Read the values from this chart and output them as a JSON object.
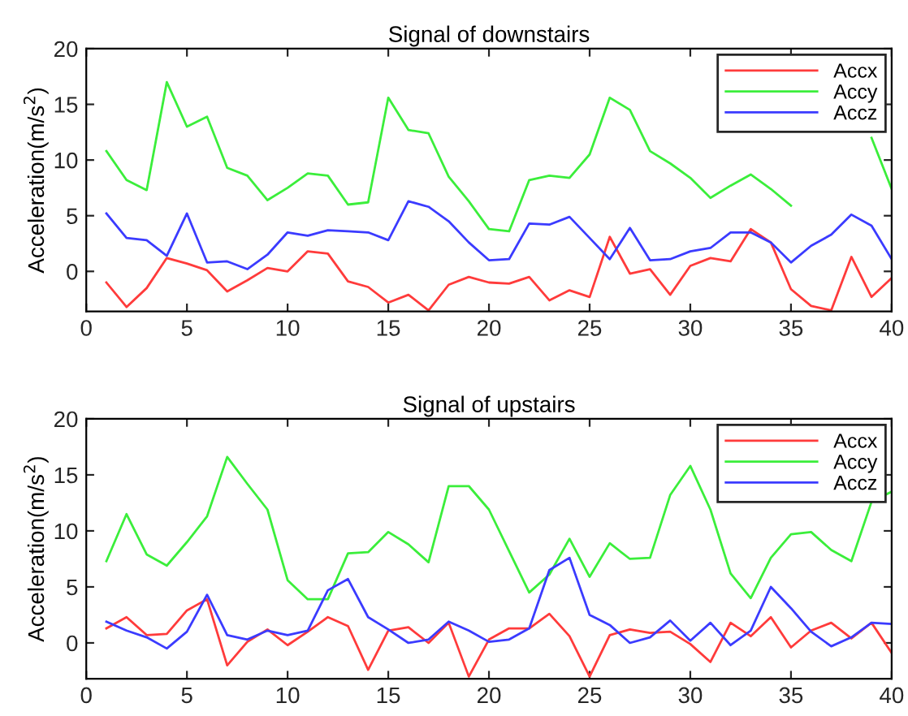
{
  "chart_data": [
    {
      "type": "line",
      "title": "Signal of downstairs",
      "ylabel": "Acceleration(m/s$^{2}$)",
      "x": [
        1,
        2,
        3,
        4,
        5,
        6,
        7,
        8,
        9,
        10,
        11,
        12,
        13,
        14,
        15,
        16,
        17,
        18,
        19,
        20,
        21,
        22,
        23,
        24,
        25,
        26,
        27,
        28,
        29,
        30,
        31,
        32,
        33,
        34,
        35,
        36,
        37,
        38,
        39,
        40
      ],
      "series": [
        {
          "name": "Accx",
          "color": "#ff3b3b",
          "values": [
            -1.0,
            -3.2,
            -1.5,
            1.2,
            0.7,
            0.1,
            -1.8,
            -0.8,
            0.3,
            0,
            1.8,
            1.6,
            -0.9,
            -1.4,
            -2.8,
            -2.1,
            -3.5,
            -1.2,
            -0.5,
            -1.0,
            -1.1,
            -0.5,
            -2.6,
            -1.7,
            -2.3,
            3.1,
            -0.2,
            0.2,
            -2.1,
            0.5,
            1.2,
            0.9,
            3.8,
            2.6,
            -1.6,
            -3.1,
            -3.5,
            1.3,
            -2.3,
            -0.6
          ]
        },
        {
          "name": "Accy",
          "color": "#3bee3b",
          "values": [
            10.8,
            8.2,
            7.3,
            17.0,
            13.0,
            13.9,
            9.3,
            8.6,
            6.4,
            7.5,
            8.8,
            8.6,
            6.0,
            6.2,
            15.6,
            12.7,
            12.4,
            8.5,
            6.3,
            3.8,
            3.6,
            8.2,
            8.6,
            8.4,
            10.5,
            15.6,
            14.5,
            10.8,
            9.7,
            8.4,
            6.6,
            7.7,
            8.7,
            7.4,
            5.9,
            null,
            null,
            null,
            12.0,
            7.4
          ]
        },
        {
          "name": "Accz",
          "color": "#3b3bff",
          "values": [
            5.2,
            3.0,
            2.8,
            1.4,
            5.2,
            0.8,
            0.9,
            0.2,
            1.5,
            3.5,
            3.2,
            3.7,
            3.6,
            3.5,
            2.8,
            6.3,
            5.8,
            4.5,
            2.6,
            1.0,
            1.1,
            4.3,
            4.2,
            4.9,
            3.0,
            1.1,
            3.9,
            1.0,
            1.1,
            1.8,
            2.1,
            3.5,
            3.5,
            2.6,
            0.8,
            2.3,
            3.3,
            5.1,
            4.1,
            1.1
          ]
        }
      ],
      "xlim": [
        0,
        40
      ],
      "xticks": [
        0,
        5,
        10,
        15,
        20,
        25,
        30,
        35,
        40
      ],
      "ylim": [
        -3.6,
        20
      ],
      "yticks": [
        0,
        5,
        10,
        15,
        20
      ],
      "legend": "top right",
      "grid": false
    },
    {
      "type": "line",
      "title": "Signal of upstairs",
      "ylabel": "Acceleration(m/s$^{2}$)",
      "x": [
        1,
        2,
        3,
        4,
        5,
        6,
        7,
        8,
        9,
        10,
        11,
        12,
        13,
        14,
        15,
        16,
        17,
        18,
        19,
        20,
        21,
        22,
        23,
        24,
        25,
        26,
        27,
        28,
        29,
        30,
        31,
        32,
        33,
        34,
        35,
        36,
        37,
        38,
        39,
        40
      ],
      "series": [
        {
          "name": "Accx",
          "color": "#ff3b3b",
          "values": [
            1.3,
            2.3,
            0.7,
            0.8,
            2.9,
            3.9,
            -2.0,
            0.1,
            1.2,
            -0.2,
            1.0,
            2.3,
            1.5,
            -2.4,
            1.1,
            1.4,
            0,
            1.8,
            -3.0,
            0.3,
            1.3,
            1.3,
            2.6,
            0.6,
            -3.0,
            0.7,
            1.2,
            0.9,
            1.0,
            -0.1,
            -1.7,
            1.8,
            0.6,
            2.3,
            -0.4,
            1.1,
            1.8,
            0.4,
            1.8,
            -0.9
          ]
        },
        {
          "name": "Accy",
          "color": "#3bee3b",
          "values": [
            7.3,
            11.5,
            7.9,
            6.9,
            9.0,
            11.3,
            16.6,
            14.2,
            11.9,
            5.6,
            3.9,
            3.9,
            8.0,
            8.1,
            9.9,
            8.8,
            7.2,
            14.0,
            14.0,
            11.9,
            8.2,
            4.5,
            6.1,
            9.3,
            5.9,
            8.9,
            7.5,
            7.6,
            13.2,
            15.8,
            11.9,
            6.2,
            4.0,
            7.6,
            9.7,
            9.9,
            8.3,
            7.3,
            12.6,
            13.5
          ]
        },
        {
          "name": "Accz",
          "color": "#3b3bff",
          "values": [
            1.9,
            1.1,
            0.5,
            -0.5,
            1.0,
            4.3,
            0.7,
            0.3,
            1.1,
            0.7,
            1.1,
            4.7,
            5.7,
            2.3,
            1.2,
            0,
            0.3,
            1.9,
            1.1,
            0.1,
            0.3,
            1.3,
            6.5,
            7.6,
            2.5,
            1.6,
            0,
            0.5,
            2.0,
            0.2,
            1.8,
            -0.2,
            1.1,
            5.0,
            3.1,
            1.0,
            -0.3,
            0.5,
            1.8,
            1.7
          ]
        }
      ],
      "xlim": [
        0,
        40
      ],
      "xticks": [
        0,
        5,
        10,
        15,
        20,
        25,
        30,
        35,
        40
      ],
      "ylim": [
        -3.2,
        20
      ],
      "yticks": [
        0,
        5,
        10,
        15,
        20
      ],
      "legend": "top right",
      "grid": false
    }
  ]
}
